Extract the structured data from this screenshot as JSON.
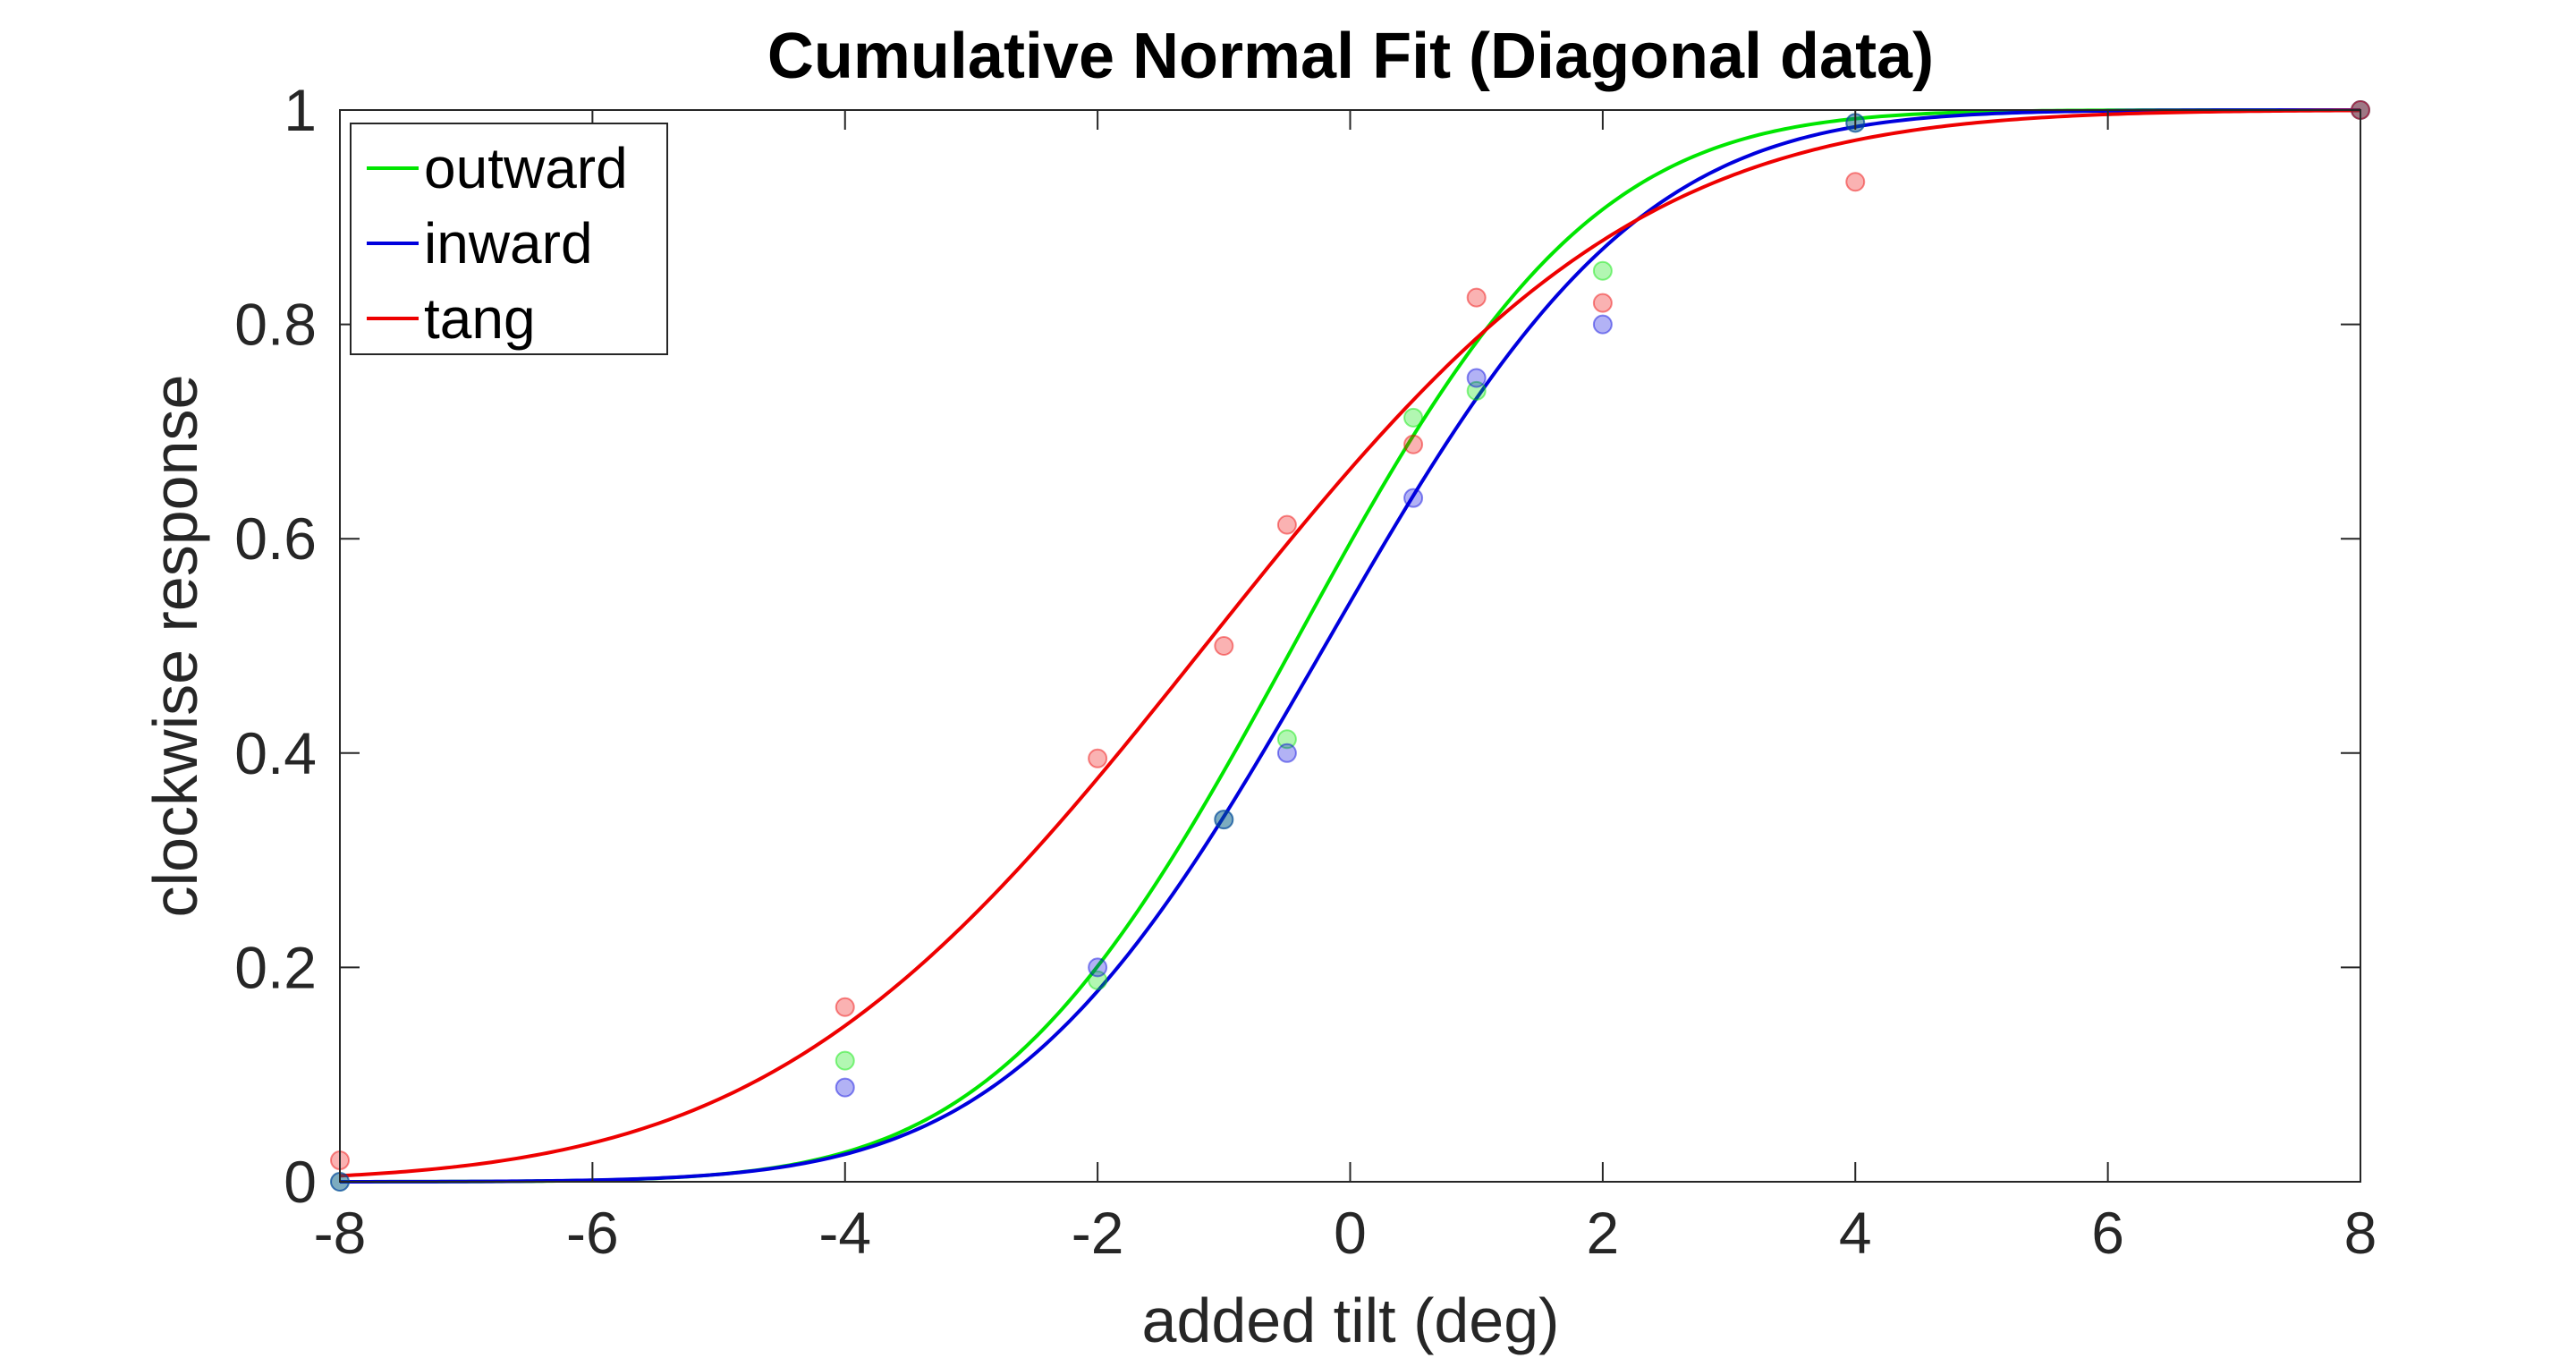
{
  "chart_data": {
    "type": "line",
    "title": "Cumulative Normal Fit (Diagonal data)",
    "xlabel": "added tilt (deg)",
    "ylabel": "clockwise response",
    "xlim": [
      -8,
      8
    ],
    "ylim": [
      0,
      1
    ],
    "xticks": [
      -8,
      -6,
      -4,
      -2,
      0,
      2,
      4,
      6,
      8
    ],
    "yticks": [
      0,
      0.2,
      0.4,
      0.6,
      0.8,
      1
    ],
    "xtick_labels": [
      "-8",
      "-6",
      "-4",
      "-2",
      "0",
      "2",
      "4",
      "6",
      "8"
    ],
    "ytick_labels": [
      "0",
      "0.2",
      "0.4",
      "0.6",
      "0.8",
      "1"
    ],
    "grid": false,
    "legend_position": "top-left",
    "x": [
      -8,
      -4,
      -2,
      -1,
      -0.5,
      0.5,
      1,
      2,
      4,
      8
    ],
    "series": [
      {
        "name": "outward",
        "color": "#00e600",
        "fit": {
          "mu": -0.45,
          "sigma": 1.85
        },
        "points": [
          0.0,
          0.113,
          0.188,
          0.338,
          0.413,
          0.713,
          0.738,
          0.85,
          0.988,
          1.0
        ]
      },
      {
        "name": "inward",
        "color": "#0000dd",
        "fit": {
          "mu": -0.2,
          "sigma": 1.95
        },
        "points": [
          0.0,
          0.088,
          0.2,
          0.338,
          0.4,
          0.638,
          0.75,
          0.8,
          0.988,
          1.0
        ]
      },
      {
        "name": "tang",
        "color": "#ee0000",
        "fit": {
          "mu": -1.15,
          "sigma": 2.7
        },
        "points": [
          0.02,
          0.163,
          0.395,
          0.5,
          0.613,
          0.688,
          0.825,
          0.82,
          0.933,
          1.0
        ]
      }
    ]
  }
}
